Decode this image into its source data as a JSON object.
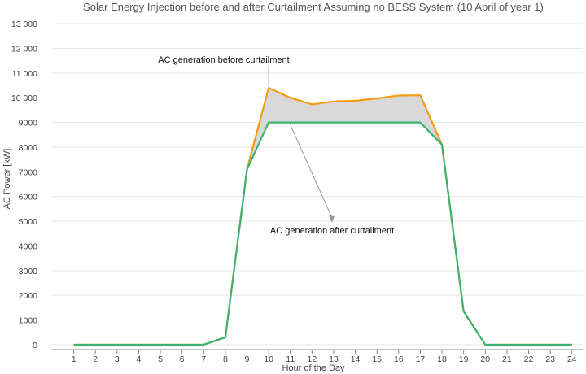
{
  "chart_data": {
    "type": "line",
    "title": "Solar Energy Injection before and after Curtailment Assuming no BESS System (10 April of year 1)",
    "xlabel": "Hour of the Day",
    "ylabel": "AC Power [kW]",
    "x": [
      1,
      2,
      3,
      4,
      5,
      6,
      7,
      8,
      9,
      10,
      11,
      12,
      13,
      14,
      15,
      16,
      17,
      18,
      19,
      20,
      21,
      22,
      23,
      24
    ],
    "xlim": [
      0,
      24.5
    ],
    "ylim": [
      -200,
      13300
    ],
    "yticks": [
      0,
      1000,
      2000,
      3000,
      4000,
      5000,
      6000,
      7000,
      8000,
      9000,
      10000,
      11000,
      12000,
      13000
    ],
    "ytick_labels": [
      "0",
      "1000",
      "2000",
      "3000",
      "4000",
      "5000",
      "6000",
      "7000",
      "8000",
      "9000",
      "10 000",
      "11 000",
      "12 000",
      "13 000"
    ],
    "grid": true,
    "series": [
      {
        "name": "AC generation before curtailment",
        "color": "#f39c12",
        "values": [
          0,
          0,
          0,
          0,
          0,
          0,
          0,
          300,
          7100,
          10400,
          10000,
          9730,
          9850,
          9880,
          9970,
          10090,
          10100,
          8100,
          1350,
          0,
          0,
          0,
          0,
          0
        ]
      },
      {
        "name": "AC generation after curtailment",
        "color": "#3cb371",
        "values": [
          0,
          0,
          0,
          0,
          0,
          0,
          0,
          300,
          7100,
          9000,
          9000,
          9000,
          9000,
          9000,
          9000,
          9000,
          9000,
          8100,
          1350,
          0,
          0,
          0,
          0,
          0
        ]
      }
    ],
    "fill_between": {
      "color": "#d9d9d9",
      "from": 9,
      "to": 18
    },
    "annotations": [
      {
        "text": "AC generation before curtailment",
        "series": 0,
        "x": 10
      },
      {
        "text": "AC generation after curtailment",
        "series": 1,
        "x": 11
      }
    ]
  }
}
